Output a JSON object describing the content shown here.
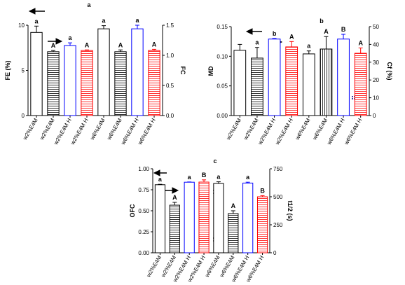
{
  "chart_data": [
    {
      "type": "bar",
      "title": "a",
      "ylabel": "FE (%)",
      "y2label": "FC",
      "categories": [
        "w2%E4M",
        "w2%E4M",
        "w2%E4M H",
        "w2%E4M H",
        "w6%E4M",
        "w6%E4M",
        "w6%E4M H",
        "w6%E4M H"
      ],
      "annotations": [
        "a",
        "A",
        "a",
        "A",
        "a",
        "A",
        "a",
        "A"
      ],
      "ylim": [
        0,
        10
      ],
      "yticks": [
        0,
        5,
        10
      ],
      "y2lim": [
        0,
        1.5
      ],
      "y2ticks": [
        {
          "value": 0,
          "label": "0.0"
        },
        {
          "value": 0.5,
          "label": "0.5"
        },
        {
          "value": 1,
          "label": "1.0"
        },
        {
          "value": 1.5,
          "label": "1.5"
        }
      ],
      "series": [
        {
          "axis": "y",
          "hatch": "none",
          "colors": [
            "#000000",
            null,
            "#0000ff",
            null,
            "#000000",
            null,
            "#0000ff",
            null
          ],
          "values": [
            9.2,
            null,
            7.75,
            null,
            9.6,
            null,
            9.6,
            null
          ],
          "errors": [
            0.7,
            null,
            0.3,
            null,
            0.35,
            null,
            0.4,
            null
          ]
        },
        {
          "axis": "y2",
          "hatch": "h",
          "colors": [
            null,
            "#000000",
            null,
            "#ff0000",
            null,
            "#000000",
            null,
            "#ff0000"
          ],
          "values": [
            null,
            1.06,
            null,
            1.08,
            null,
            1.06,
            null,
            1.08
          ],
          "errors": [
            null,
            0.02,
            null,
            0.01,
            null,
            0.03,
            null,
            0.02
          ]
        }
      ]
    },
    {
      "type": "bar",
      "title": "b",
      "ylabel": "MD",
      "y2label": "Cf (%)",
      "categories": [
        "w2%E4M",
        "w2%E4M",
        "w2%E4M H",
        "w2%E4M H",
        "w6%E4M",
        "w6%E4M",
        "w6%E4M H",
        "w6%E4M H"
      ],
      "annotations": [
        null,
        "a",
        "b",
        "A",
        "a",
        "A",
        "B",
        "A"
      ],
      "ylim": [
        0,
        0.15
      ],
      "yticks": [
        {
          "value": 0,
          "label": "0.00"
        },
        {
          "value": 0.05,
          "label": "0.05"
        },
        {
          "value": 0.1,
          "label": "0.10"
        },
        {
          "value": 0.15,
          "label": "0.15"
        }
      ],
      "y2lim": [
        0,
        50
      ],
      "y2ticks": [
        0,
        10,
        20,
        30,
        40,
        50
      ],
      "series": [
        {
          "axis": "y",
          "hatch": "none",
          "colors": [
            "#000000",
            null,
            "#0000ff",
            null,
            "#000000",
            null,
            "#0000ff",
            null
          ],
          "values": [
            0.11,
            null,
            0.129,
            null,
            0.104,
            null,
            0.129,
            null
          ],
          "errors": [
            0.01,
            null,
            0.001,
            null,
            0.005,
            null,
            0.008,
            null
          ]
        },
        {
          "axis": "y2",
          "hatch": "h",
          "colors": [
            null,
            "#000000",
            null,
            "#ff0000",
            null,
            "#000000",
            null,
            "#ff0000"
          ],
          "values": [
            null,
            32.3,
            null,
            38.6,
            null,
            37.4,
            null,
            35
          ],
          "errors": [
            null,
            6,
            null,
            3,
            null,
            7,
            null,
            3
          ]
        }
      ]
    },
    {
      "type": "bar",
      "title": "c",
      "ylabel": "OFC",
      "y2label": "t1/2 (s)",
      "categories": [
        "w2%E4M",
        "w2%E4M",
        "w2%E4M H",
        "w2%E4M H",
        "w6%E4M",
        "w6%E4M",
        "w6%E4M H",
        "w6%E4M H"
      ],
      "annotations": [
        "a",
        "A",
        "a",
        "B",
        "a",
        "A",
        "a",
        "B"
      ],
      "ylim": [
        0,
        1
      ],
      "yticks": [
        {
          "value": 0,
          "label": "0.00"
        },
        {
          "value": 0.25,
          "label": "0.25"
        },
        {
          "value": 0.5,
          "label": "0.50"
        },
        {
          "value": 0.75,
          "label": "0.75"
        },
        {
          "value": 1,
          "label": "1.00"
        }
      ],
      "y2lim": [
        0,
        750
      ],
      "y2ticks": [
        0,
        250,
        500,
        750
      ],
      "series": [
        {
          "axis": "y",
          "hatch": "none",
          "colors": [
            "#000000",
            null,
            "#0000ff",
            null,
            "#000000",
            null,
            "#0000ff",
            null
          ],
          "values": [
            0.81,
            null,
            0.84,
            null,
            0.825,
            null,
            0.83,
            null
          ],
          "errors": [
            0.005,
            null,
            0.003,
            null,
            0.02,
            null,
            0.01,
            null
          ]
        },
        {
          "axis": "y2",
          "hatch": "h",
          "colors": [
            null,
            "#000000",
            null,
            "#ff0000",
            null,
            "#000000",
            null,
            "#ff0000"
          ],
          "values": [
            null,
            425,
            null,
            631,
            null,
            350,
            null,
            500
          ],
          "errors": [
            null,
            25,
            null,
            20,
            null,
            25,
            null,
            10
          ]
        }
      ]
    }
  ]
}
